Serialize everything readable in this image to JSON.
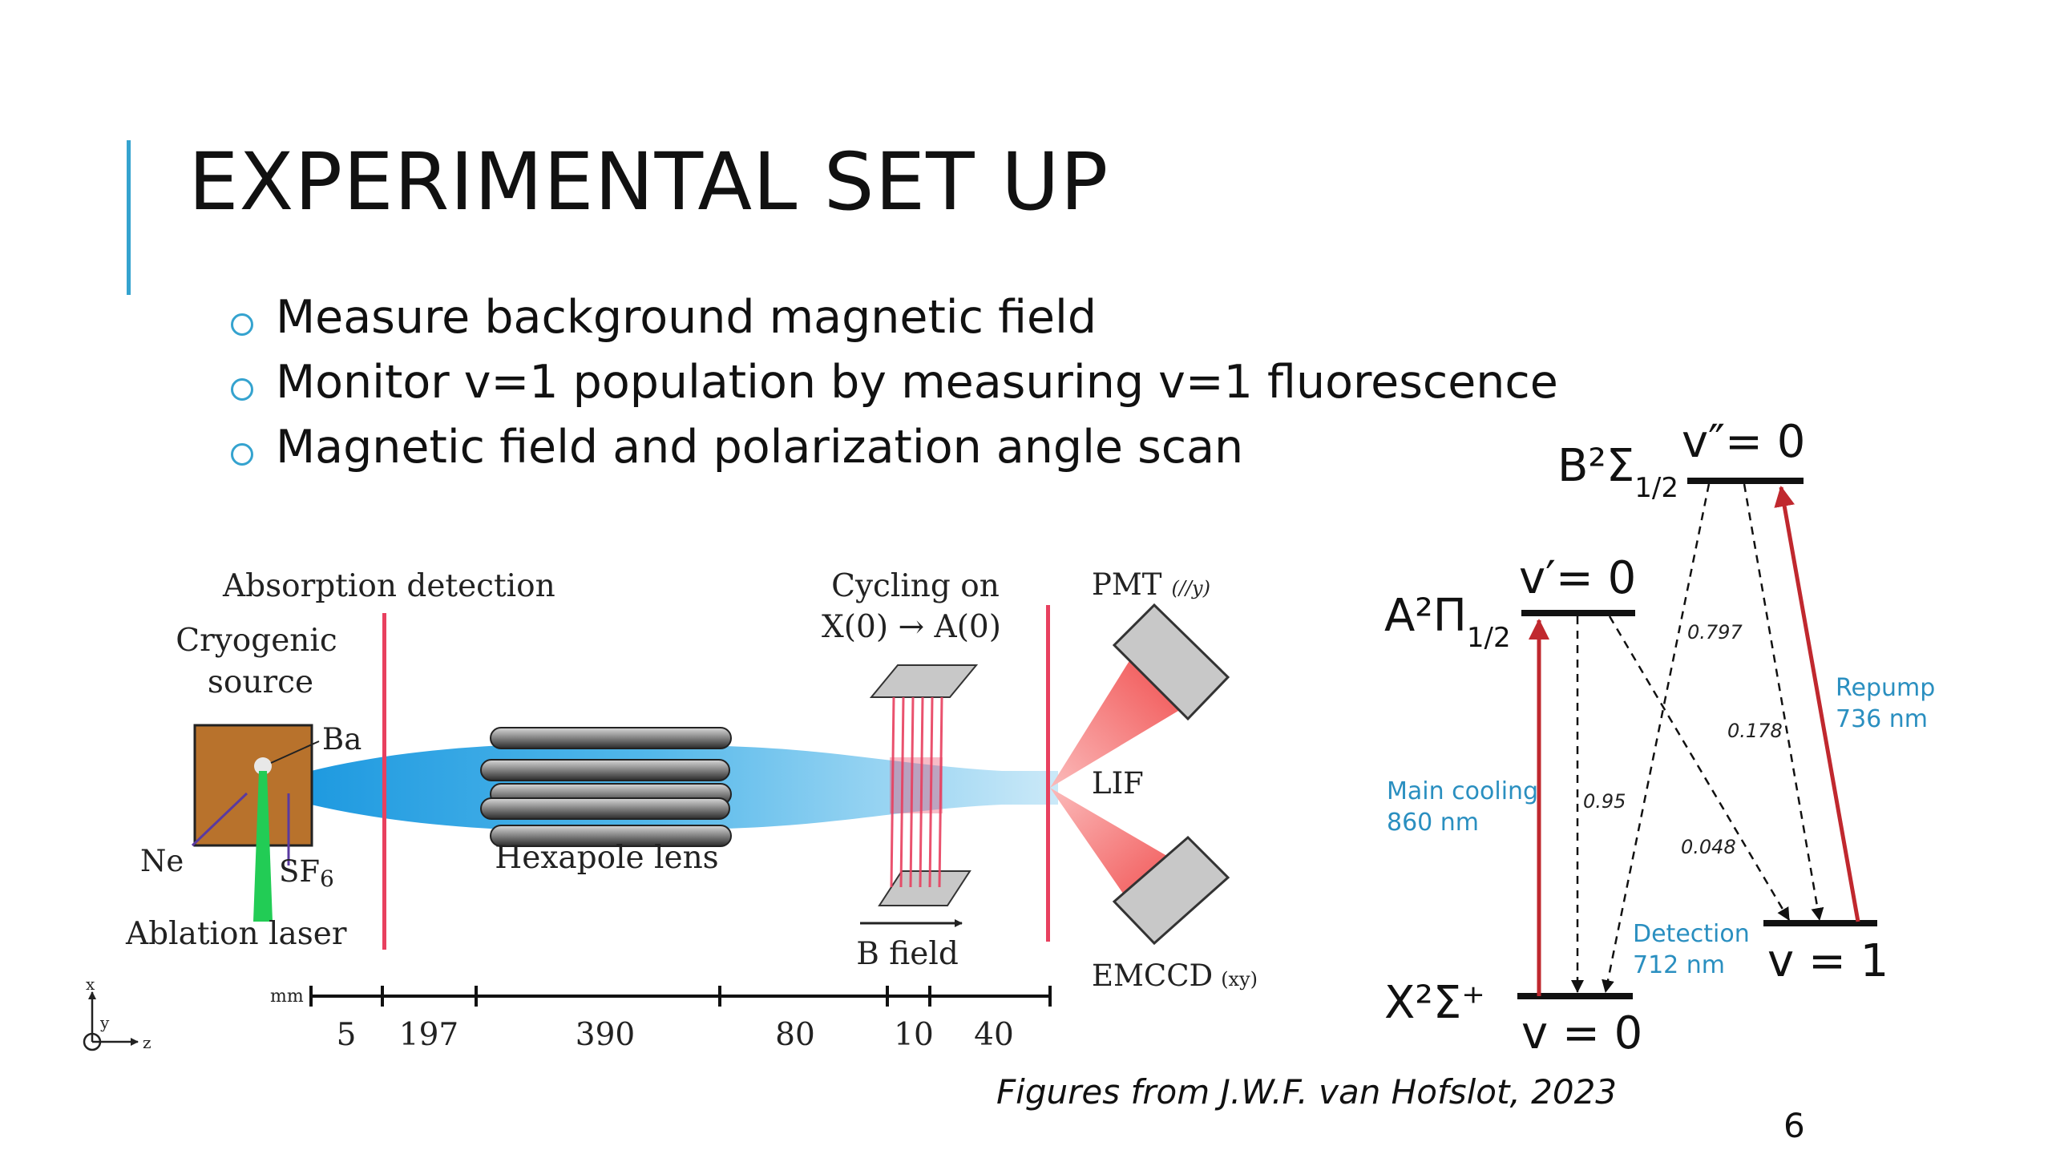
{
  "slide": {
    "title": "EXPERIMENTAL SET UP",
    "bullets": [
      "Measure background magnetic field",
      "Monitor v=1 population by measuring v=1 fluorescence",
      "Magnetic field and polarization angle scan"
    ],
    "caption": "Figures from J.W.F. van Hofslot, 2023",
    "page_number": "6",
    "accent_color": "#35a3cf"
  },
  "setup_diagram": {
    "absorption_label": "Absorption detection",
    "source_line1": "Cryogenic",
    "source_line2": "source",
    "ba_label": "Ba",
    "ne_label": "Ne",
    "sf6_label": "SF",
    "sf6_sub": "6",
    "ablation_label": "Ablation laser",
    "hexapole_label": "Hexapole lens",
    "cycling_line1": "Cycling on",
    "cycling_line2": "X(0) → A(0)",
    "bfield_label": "B field",
    "pmt_label": "PMT",
    "pmt_pol": "(//y)",
    "lif_label": "LIF",
    "emccd_label": "EMCCD",
    "emccd_pol": "(xy)",
    "scale_unit": "mm",
    "scale_values": [
      "5",
      "197",
      "390",
      "80",
      "10",
      "40"
    ],
    "axis_x": "x",
    "axis_y": "y",
    "axis_z": "z",
    "beam_color": "#3aa9e0",
    "laser_color": "#e8405f",
    "source_color": "#b8722c",
    "ablation_color": "#22cc55"
  },
  "level_diagram": {
    "b_state": "B²Σ",
    "b_sub": "1/2",
    "b_level": "v″= 0",
    "a_state": "A²Π",
    "a_sub": "1/2",
    "a_level": "v′= 0",
    "x_state": "X²Σ⁺",
    "x_level": "v = 0",
    "x1_level": "v = 1",
    "main_cooling_line1": "Main cooling",
    "main_cooling_line2": "860 nm",
    "repump_line1": "Repump",
    "repump_line2": "736 nm",
    "detection_line1": "Detection",
    "detection_line2": "712 nm",
    "branching": {
      "a_to_x0": "0.95",
      "a_to_x1": "0.048",
      "b_to_x0": "0.797",
      "b_to_x1": "0.178"
    },
    "label_color": "#2a8fc0",
    "arrow_color": "#c0282e"
  }
}
